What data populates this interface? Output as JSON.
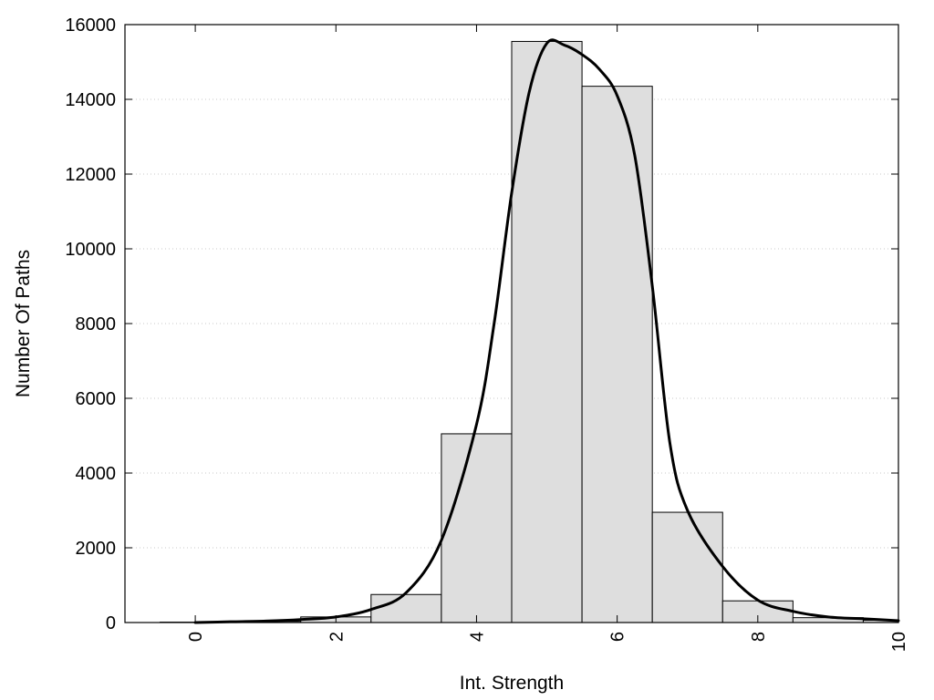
{
  "chart_data": {
    "type": "bar",
    "subtype": "histogram-with-smooth-curve",
    "title": "",
    "xlabel": "Int. Strength",
    "ylabel": "Number Of Paths",
    "xlim": [
      -1,
      10
    ],
    "ylim": [
      0,
      16000
    ],
    "xticks": [
      0,
      2,
      4,
      6,
      8,
      10
    ],
    "yticks": [
      0,
      2000,
      4000,
      6000,
      8000,
      10000,
      12000,
      14000,
      16000
    ],
    "grid": "horizontal-dotted",
    "legend": "none",
    "bar_color": "#dedede",
    "line_color": "#000000",
    "bins": {
      "centers": [
        0,
        1,
        2,
        3,
        4,
        5,
        6,
        7,
        8,
        9,
        10
      ],
      "width": 1,
      "values": [
        10,
        30,
        150,
        750,
        5050,
        15550,
        14350,
        2950,
        580,
        130,
        60
      ]
    },
    "curve": {
      "x": [
        0,
        0.5,
        1,
        1.5,
        2,
        2.5,
        3,
        3.5,
        4,
        4.25,
        4.5,
        4.75,
        5,
        5.25,
        5.5,
        5.75,
        6,
        6.25,
        6.5,
        6.75,
        7,
        7.5,
        8,
        8.5,
        9,
        9.5,
        10
      ],
      "y": [
        0,
        20,
        40,
        80,
        150,
        350,
        800,
        2200,
        5300,
        8000,
        11500,
        14200,
        15500,
        15450,
        15200,
        14800,
        14100,
        12500,
        9000,
        4800,
        3000,
        1500,
        600,
        300,
        150,
        100,
        50
      ]
    }
  }
}
